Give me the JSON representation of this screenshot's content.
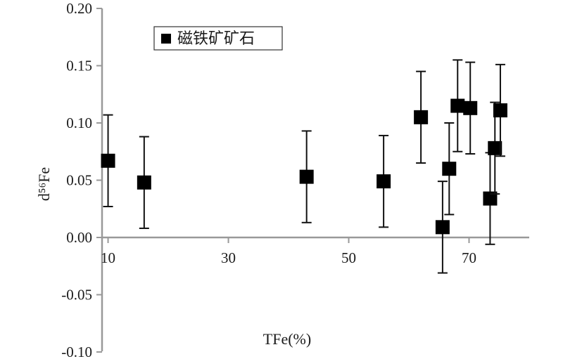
{
  "chart_data": {
    "type": "scatter",
    "xlabel": "TFe(%)",
    "ylabel": "d⁵⁶Fe",
    "xticks": [
      10,
      30,
      50,
      70
    ],
    "yticks": [
      -0.1,
      -0.05,
      0.0,
      0.05,
      0.1,
      0.15,
      0.2
    ],
    "ytick_labels": [
      "-0.10",
      "-0.05",
      "0.00",
      "0.05",
      "0.10",
      "0.15",
      "0.20"
    ],
    "xlim": [
      9,
      80
    ],
    "ylim": [
      -0.1,
      0.2
    ],
    "grid": false,
    "legend_position": "top-left",
    "series": [
      {
        "name": "磁铁矿矿石",
        "marker": "square",
        "color": "#000000",
        "points": [
          {
            "x": 10.0,
            "y": 0.067,
            "err": 0.04
          },
          {
            "x": 16.0,
            "y": 0.048,
            "err": 0.04
          },
          {
            "x": 43.0,
            "y": 0.053,
            "err": 0.04
          },
          {
            "x": 55.8,
            "y": 0.049,
            "err": 0.04
          },
          {
            "x": 62.0,
            "y": 0.105,
            "err": 0.04
          },
          {
            "x": 65.6,
            "y": 0.009,
            "err": 0.04
          },
          {
            "x": 66.7,
            "y": 0.06,
            "err": 0.04
          },
          {
            "x": 68.1,
            "y": 0.115,
            "err": 0.04
          },
          {
            "x": 70.2,
            "y": 0.113,
            "err": 0.04
          },
          {
            "x": 73.5,
            "y": 0.034,
            "err": 0.04
          },
          {
            "x": 74.3,
            "y": 0.078,
            "err": 0.04
          },
          {
            "x": 75.2,
            "y": 0.111,
            "err": 0.04
          }
        ]
      }
    ]
  }
}
